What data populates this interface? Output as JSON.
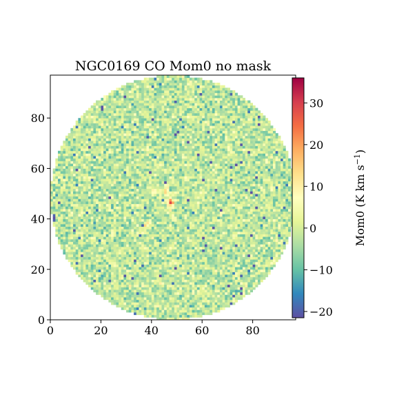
{
  "chart_data": {
    "type": "heatmap",
    "title": "NGC0169 CO Mom0 no mask",
    "xlabel": "",
    "ylabel": "",
    "xlim": [
      0,
      97
    ],
    "ylim": [
      0,
      97
    ],
    "x_ticks": [
      0,
      20,
      40,
      60,
      80
    ],
    "y_ticks": [
      0,
      20,
      40,
      60,
      80
    ],
    "grid": false,
    "colormap": "Spectral_r",
    "map": {
      "shape": "circular",
      "center": [
        48.5,
        48.5
      ],
      "radius": 48.5,
      "background_value_range": [
        -10,
        6
      ],
      "emission": [
        {
          "x": 47.5,
          "y": 46.5,
          "peak": 33
        },
        {
          "x": 45.5,
          "y": 50.5,
          "peak": 16
        },
        {
          "x": 38.5,
          "y": 37.5,
          "peak": 15
        },
        {
          "x": 41.5,
          "y": 51.5,
          "peak": 11
        },
        {
          "x": 48.5,
          "y": 41.5,
          "peak": 10
        }
      ]
    },
    "colorbar": {
      "label": "Mom0 (K km s",
      "label_unit_sup": "−1",
      "label_close": ")",
      "vmin": -21.5,
      "vmax": 36,
      "ticks": [
        30,
        20,
        10,
        0,
        -10,
        -20
      ],
      "tick_labels": [
        "30",
        "20",
        "10",
        "0",
        "−10",
        "−20"
      ]
    }
  }
}
